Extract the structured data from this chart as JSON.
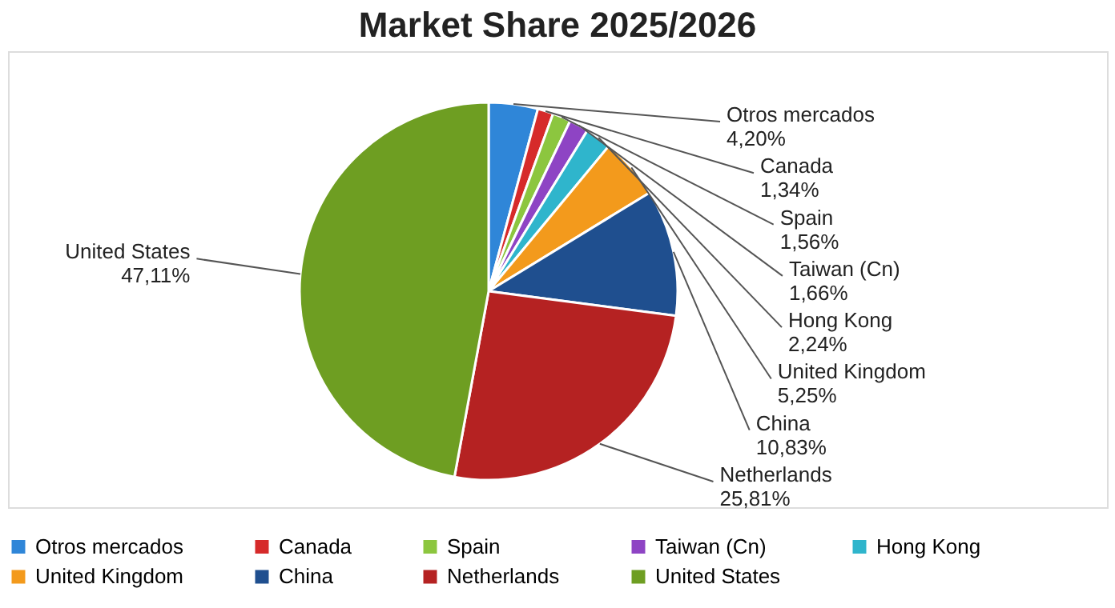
{
  "chart_data": {
    "type": "pie",
    "title": "Market Share 2025/2026",
    "categories": [
      "Otros mercados",
      "Canada",
      "Spain",
      "Taiwan (Cn)",
      "Hong Kong",
      "United Kingdom",
      "China",
      "Netherlands",
      "United States"
    ],
    "values": [
      4.2,
      1.34,
      1.56,
      1.66,
      2.24,
      5.25,
      10.83,
      25.81,
      47.11
    ],
    "value_labels": [
      "4,20%",
      "1,34%",
      "1,56%",
      "1,66%",
      "2,24%",
      "5,25%",
      "10,83%",
      "25,81%",
      "47,11%"
    ],
    "colors": [
      "#2f86d8",
      "#d62a2a",
      "#8cc63f",
      "#8e44c4",
      "#2fb5cc",
      "#f39a1c",
      "#1f4f8f",
      "#b52222",
      "#6e9e22"
    ],
    "legend": "bottom"
  }
}
